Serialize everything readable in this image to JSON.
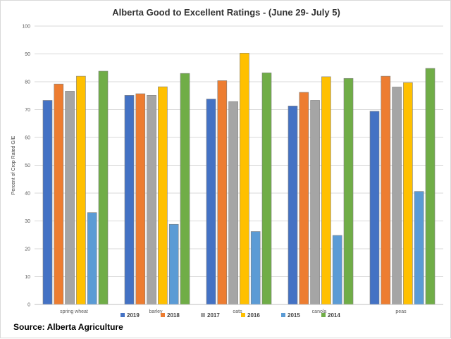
{
  "chart_data": {
    "type": "bar",
    "title": "Alberta Good to Excellent Ratings - (June 29- July 5)",
    "xlabel": "",
    "ylabel": "Percent of Crop Rated G/E",
    "ylim": [
      0,
      100
    ],
    "yticks": [
      0,
      10,
      20,
      30,
      40,
      50,
      60,
      70,
      80,
      90,
      100
    ],
    "grid": true,
    "legend_position": "bottom",
    "categories": [
      "spring wheat",
      "barley",
      "oats",
      "canola",
      "peas"
    ],
    "series": [
      {
        "name": "2019",
        "color": "#4472C4",
        "values": [
          73.3,
          75.1,
          73.8,
          71.3,
          69.4
        ]
      },
      {
        "name": "2018",
        "color": "#ED7D31",
        "values": [
          79.2,
          75.7,
          80.4,
          76.2,
          82.0
        ]
      },
      {
        "name": "2017",
        "color": "#A5A5A5",
        "values": [
          76.6,
          75.1,
          72.9,
          73.3,
          78.1
        ]
      },
      {
        "name": "2016",
        "color": "#FFC000",
        "values": [
          82.0,
          78.2,
          90.3,
          81.8,
          79.7
        ]
      },
      {
        "name": "2015",
        "color": "#5B9BD5",
        "values": [
          33.0,
          28.8,
          26.2,
          24.8,
          40.6
        ]
      },
      {
        "name": "2014",
        "color": "#70AD47",
        "values": [
          83.8,
          83.0,
          83.2,
          81.2,
          84.8
        ]
      }
    ]
  },
  "source_note": "Source: Alberta Agriculture"
}
